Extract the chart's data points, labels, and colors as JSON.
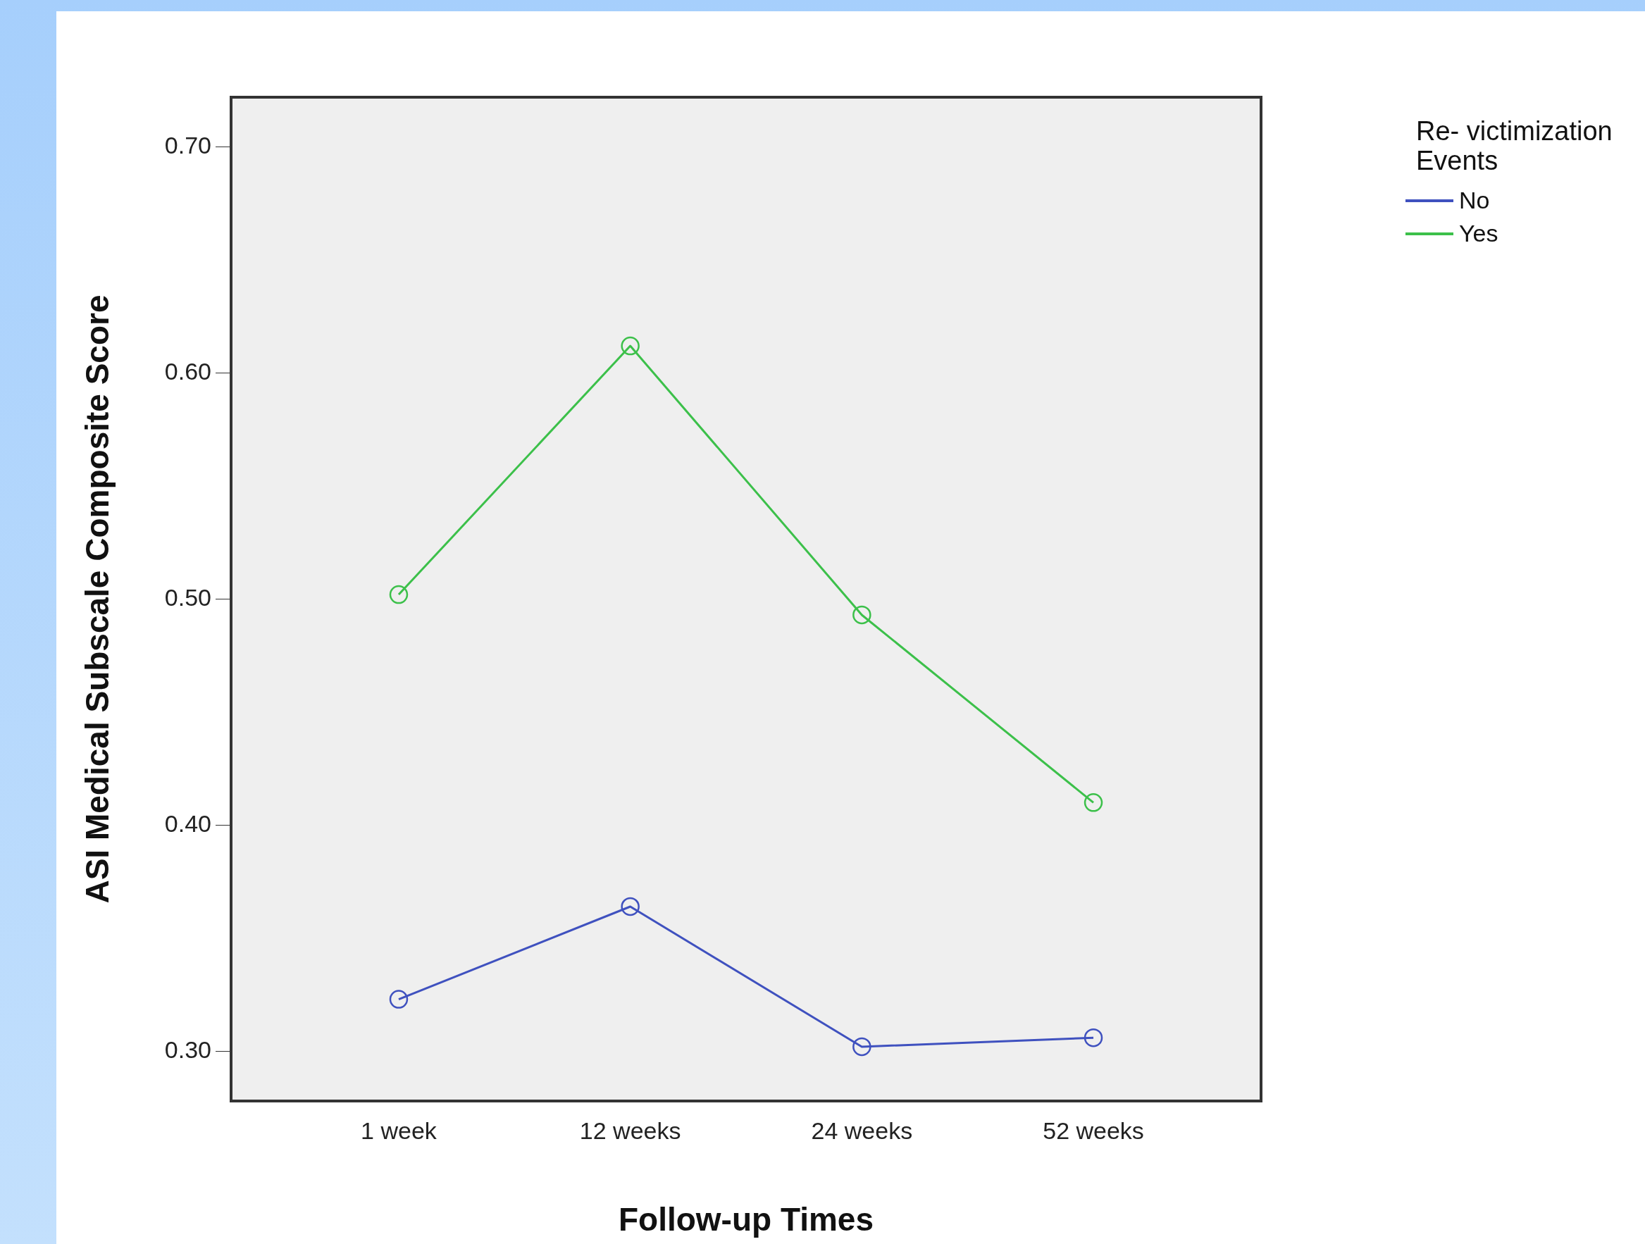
{
  "chart_data": {
    "type": "line",
    "xlabel": "Follow-up Times",
    "ylabel": "ASI Medical Subscale Composite Score",
    "legend_title": "Re- victimization Events",
    "categories": [
      "1 week",
      "12 weeks",
      "24 weeks",
      "52 weeks"
    ],
    "series": [
      {
        "name": "No",
        "color": "#3f51bf",
        "values": [
          0.323,
          0.364,
          0.302,
          0.306
        ]
      },
      {
        "name": "Yes",
        "color": "#3cc04a",
        "values": [
          0.502,
          0.612,
          0.493,
          0.41
        ]
      }
    ],
    "ylim": [
      0.278,
      0.722
    ],
    "yticks": [
      {
        "value": 0.3,
        "label": "0.30"
      },
      {
        "value": 0.4,
        "label": "0.40"
      },
      {
        "value": 0.5,
        "label": "0.50"
      },
      {
        "value": 0.6,
        "label": "0.60"
      },
      {
        "value": 0.7,
        "label": "0.70"
      }
    ],
    "grid": false,
    "legend": "top right",
    "marker": "circle",
    "line_style": "solid"
  }
}
